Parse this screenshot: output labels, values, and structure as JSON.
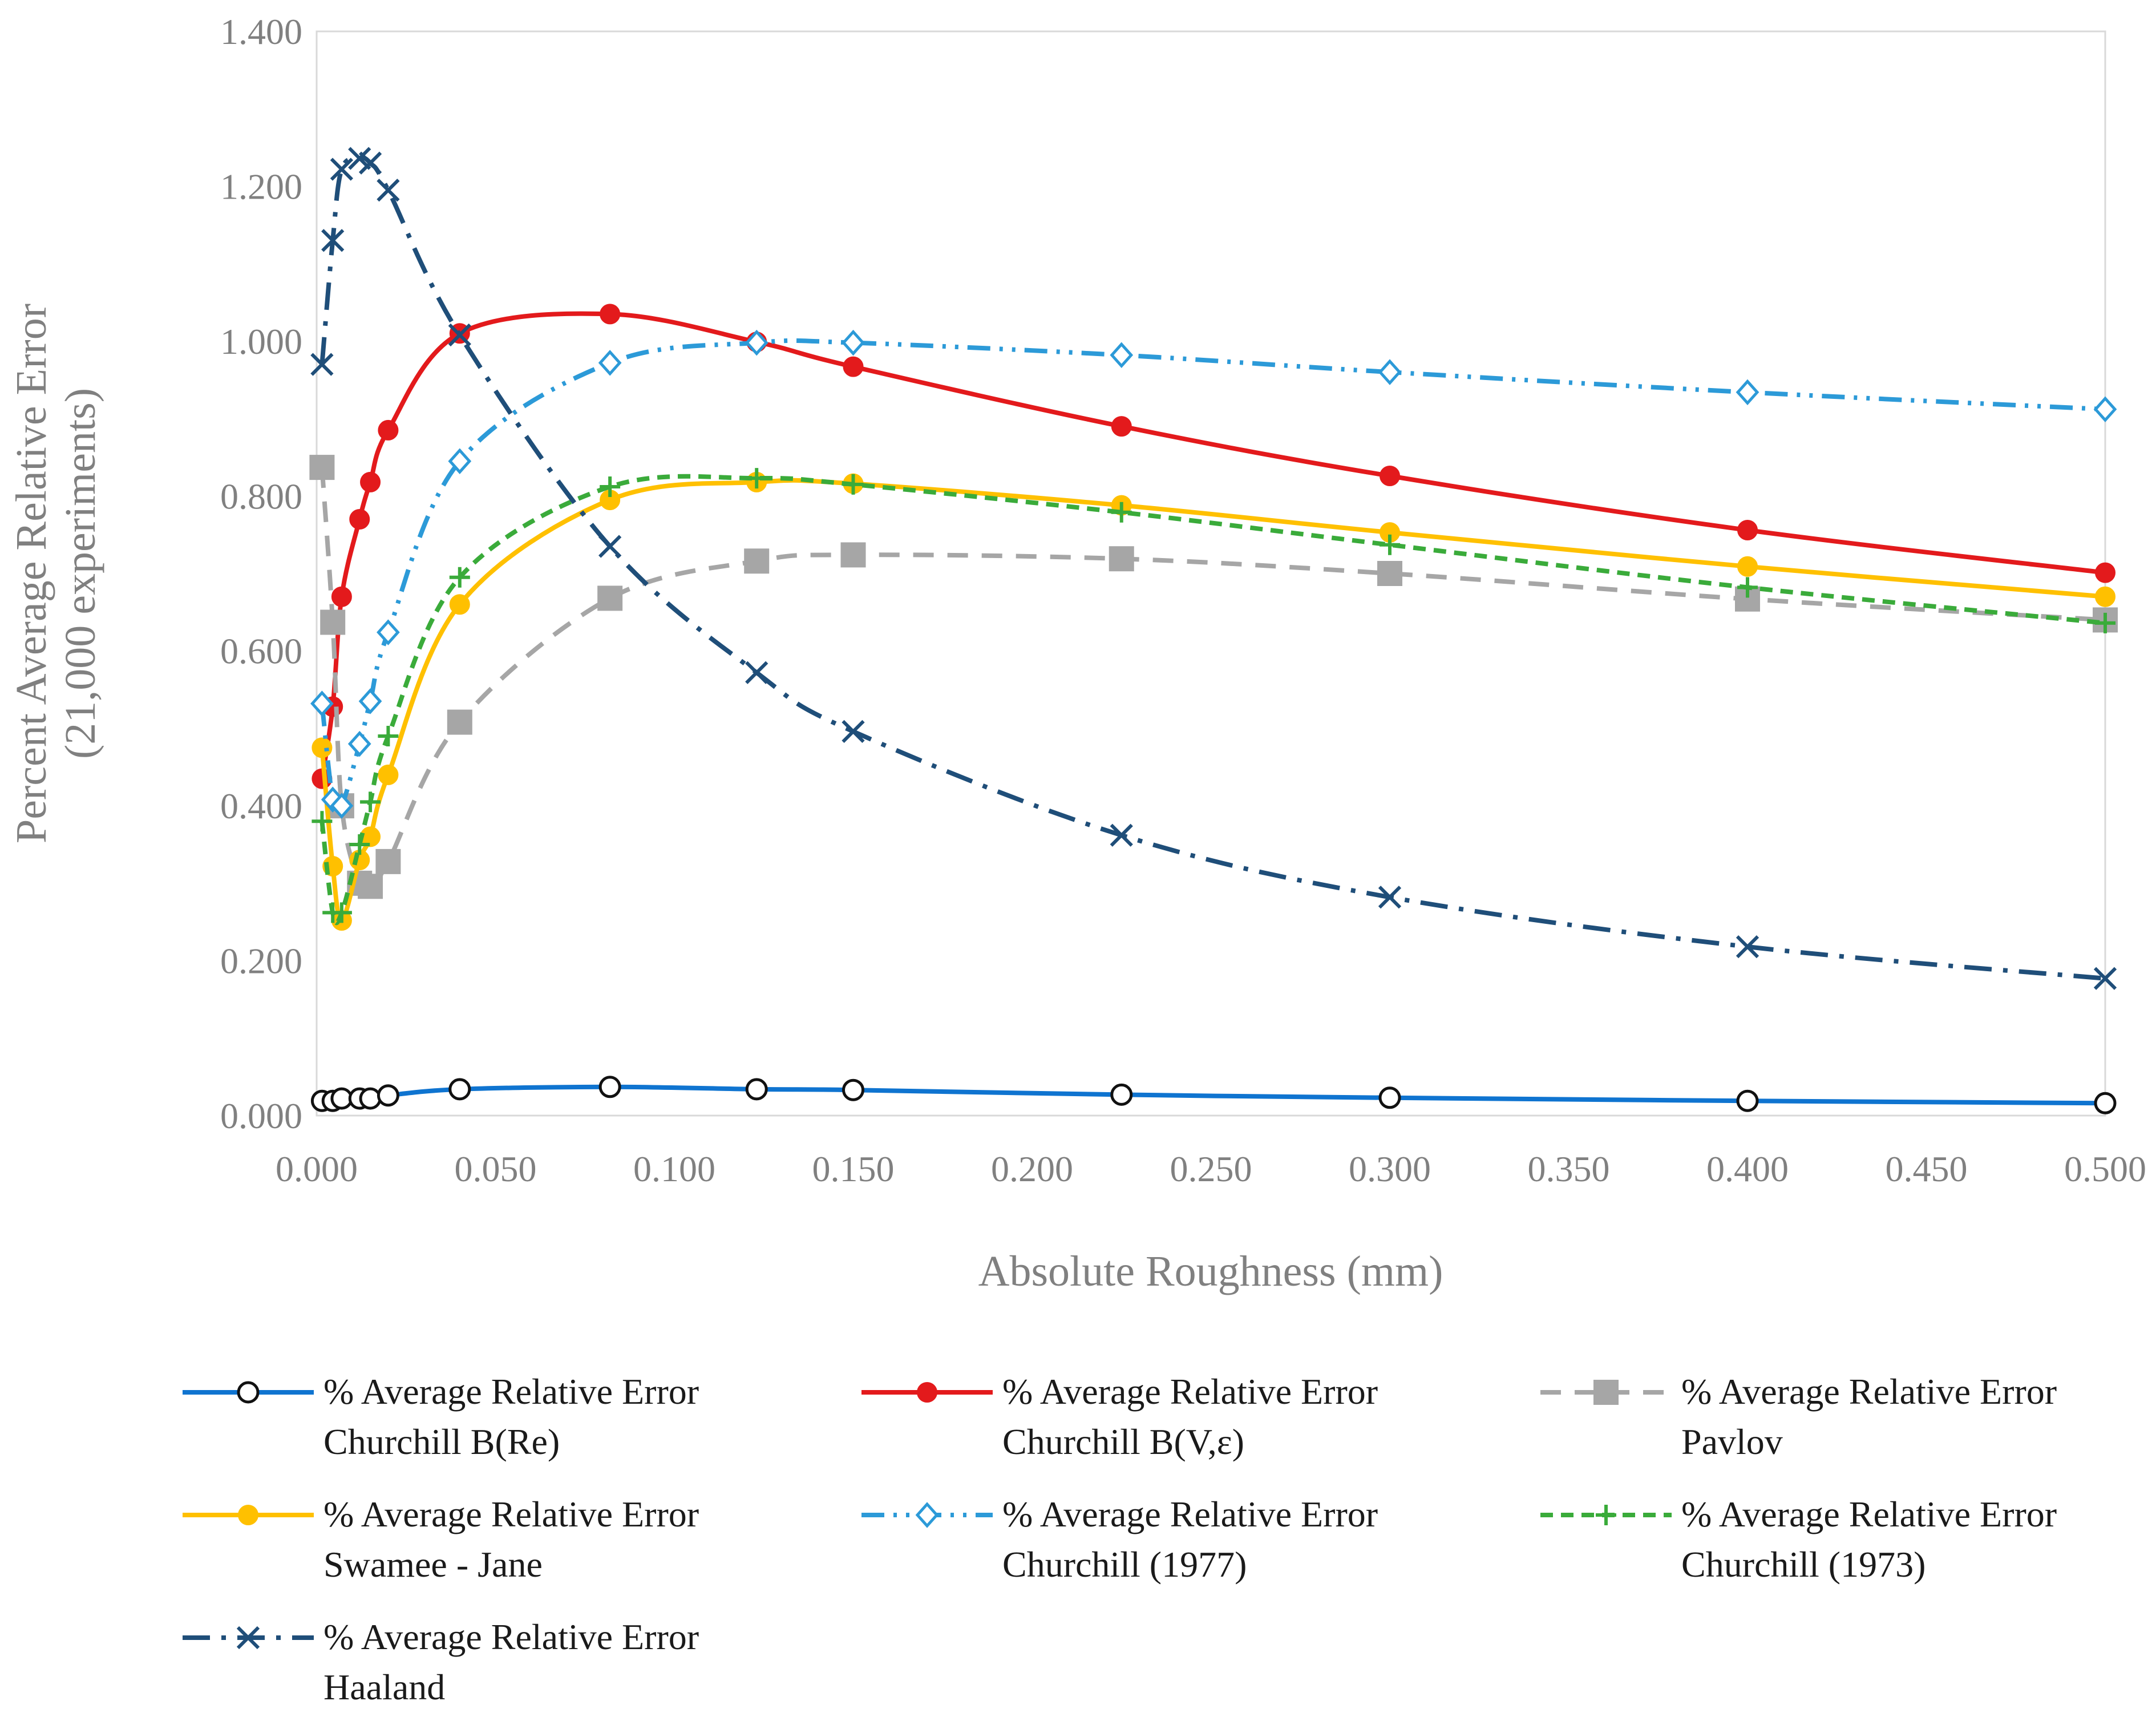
{
  "chart_data": {
    "type": "line",
    "title": "",
    "xlabel": "Absolute Roughness (mm)",
    "ylabel_line1": "Percent Average Relative Error",
    "ylabel_line2": "(21,000 experiments)",
    "xlim": [
      0,
      0.5
    ],
    "ylim": [
      0,
      1.4
    ],
    "xticks": [
      "0.000",
      "0.050",
      "0.100",
      "0.150",
      "0.200",
      "0.250",
      "0.300",
      "0.350",
      "0.400",
      "0.450",
      "0.500"
    ],
    "yticks": [
      "0.000",
      "0.200",
      "0.400",
      "0.600",
      "0.800",
      "1.000",
      "1.200",
      "1.400"
    ],
    "x": [
      0.0015,
      0.0045,
      0.007,
      0.012,
      0.015,
      0.02,
      0.04,
      0.082,
      0.123,
      0.15,
      0.225,
      0.3,
      0.4,
      0.5
    ],
    "series": [
      {
        "name": "% Average Relative Error Churchill B(Re)",
        "legend_line1": "% Average Relative Error",
        "legend_line2": "Churchill B(Re)",
        "color": "#0f74d0",
        "dash": "",
        "marker": "circle-open",
        "values": [
          0.019,
          0.019,
          0.022,
          0.022,
          0.022,
          0.026,
          0.034,
          0.037,
          0.034,
          0.033,
          0.027,
          0.023,
          0.019,
          0.016
        ]
      },
      {
        "name": "% Average Relative Error Churchill B(V,ε)",
        "legend_line1": "% Average Relative  Error",
        "legend_line2": "Churchill B(V,ε)",
        "color": "#e31a1c",
        "dash": "",
        "marker": "circle-filled",
        "values": [
          0.435,
          0.528,
          0.67,
          0.77,
          0.818,
          0.885,
          1.01,
          1.035,
          0.999,
          0.967,
          0.89,
          0.826,
          0.756,
          0.701
        ]
      },
      {
        "name": "% Average Relative Error Pavlov",
        "legend_line1": "% Average Relative Error",
        "legend_line2": "Pavlov",
        "color": "#a6a6a6",
        "dash": "36,24",
        "marker": "square",
        "values": [
          0.837,
          0.637,
          0.4,
          0.3,
          0.296,
          0.328,
          0.508,
          0.668,
          0.716,
          0.724,
          0.719,
          0.7,
          0.667,
          0.64
        ]
      },
      {
        "name": "% Average Relative Error Swamee - Jane",
        "legend_line1": "% Average Relative Error",
        "legend_line2": " Swamee - Jane",
        "color": "#ffc000",
        "dash": "",
        "marker": "circle-filled",
        "values": [
          0.475,
          0.322,
          0.252,
          0.33,
          0.36,
          0.44,
          0.66,
          0.795,
          0.818,
          0.816,
          0.788,
          0.753,
          0.709,
          0.67
        ]
      },
      {
        "name": "% Average Relative Error Churchill (1977)",
        "legend_line1": "% Average Relative Error",
        "legend_line2": "Churchill (1977)",
        "color": "#2c9ad8",
        "dash": "40,16,6,16,6,16",
        "marker": "diamond-open",
        "values": [
          0.532,
          0.408,
          0.4,
          0.48,
          0.535,
          0.624,
          0.845,
          0.972,
          0.998,
          0.998,
          0.982,
          0.96,
          0.934,
          0.912
        ]
      },
      {
        "name": "% Average Relative Error Churchill (1973)",
        "legend_line1": "% Average Relative Error",
        "legend_line2": "Churchill (1973)",
        "color": "#3aab3a",
        "dash": "22,14",
        "marker": "plus",
        "values": [
          0.38,
          0.262,
          0.262,
          0.35,
          0.405,
          0.49,
          0.695,
          0.812,
          0.823,
          0.815,
          0.779,
          0.737,
          0.682,
          0.636
        ]
      },
      {
        "name": "% Average Relative Error Haaland",
        "legend_line1": "% Average Relative Error",
        "legend_line2": "Haaland",
        "color": "#1f4e79",
        "dash": "48,20,8,20",
        "marker": "x",
        "values": [
          0.97,
          1.13,
          1.222,
          1.236,
          1.23,
          1.195,
          1.008,
          0.735,
          0.572,
          0.496,
          0.362,
          0.282,
          0.218,
          0.177
        ]
      }
    ]
  }
}
